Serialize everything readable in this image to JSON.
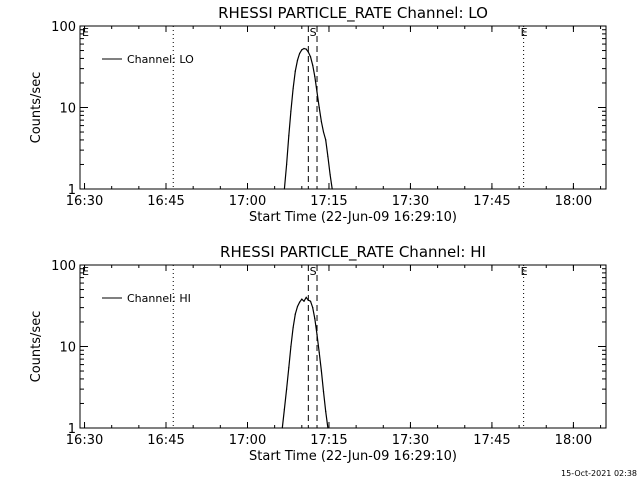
{
  "chart_data": [
    {
      "type": "line",
      "title": "RHESSI PARTICLE_RATE Channel: LO",
      "xlabel": "Start Time (22-Jun-09 16:29:10)",
      "ylabel": "Counts/sec",
      "y_scale": "log",
      "ylim": [
        1,
        100
      ],
      "y_ticks": [
        "1",
        "10",
        "100"
      ],
      "xlim": [
        "16:29:10",
        "18:06:00"
      ],
      "x_ticks": [
        "16:30",
        "16:45",
        "17:00",
        "17:15",
        "17:30",
        "17:45",
        "18:00"
      ],
      "legend": {
        "entry": "Channel: LO",
        "placement": "top-left"
      },
      "grid": false,
      "series": [
        {
          "name": "Channel: LO",
          "x": [
            "17:06:48",
            "17:07:12",
            "17:07:36",
            "17:08:00",
            "17:08:24",
            "17:08:48",
            "17:09:12",
            "17:09:36",
            "17:10:00",
            "17:10:24",
            "17:10:48",
            "17:11:12",
            "17:11:36",
            "17:12:00",
            "17:12:24",
            "17:12:48",
            "17:13:12",
            "17:13:36",
            "17:14:00",
            "17:14:24",
            "17:14:48",
            "17:15:12",
            "17:15:36"
          ],
          "values": [
            1,
            2,
            4.5,
            9,
            17,
            28,
            38,
            46,
            51,
            53,
            52,
            48,
            42,
            33,
            24,
            15.5,
            10,
            6.7,
            5,
            4,
            2.5,
            1.5,
            1
          ]
        }
      ],
      "vertical_markers": [
        {
          "time": "16:46:20",
          "style": "dotted",
          "label": ""
        },
        {
          "time": "17:11:12",
          "style": "dashed",
          "label": ""
        },
        {
          "time": "17:12:48",
          "style": "dashed",
          "label": ""
        },
        {
          "time": "17:50:50",
          "style": "dotted",
          "label": ""
        },
        {
          "time": "18:06:00",
          "style": "dotted",
          "label": ""
        }
      ],
      "flags": [
        {
          "time": "16:29:10",
          "label": "E"
        },
        {
          "time": "17:12:00",
          "label": "S"
        },
        {
          "time": "17:50:50",
          "label": "E"
        }
      ]
    },
    {
      "type": "line",
      "title": "RHESSI PARTICLE_RATE Channel: HI",
      "xlabel": "Start Time (22-Jun-09 16:29:10)",
      "ylabel": "Counts/sec",
      "y_scale": "log",
      "ylim": [
        1,
        100
      ],
      "y_ticks": [
        "1",
        "10",
        "100"
      ],
      "xlim": [
        "16:29:10",
        "18:06:00"
      ],
      "x_ticks": [
        "16:30",
        "16:45",
        "17:00",
        "17:15",
        "17:30",
        "17:45",
        "18:00"
      ],
      "legend": {
        "entry": "Channel: HI",
        "placement": "top-left"
      },
      "grid": false,
      "series": [
        {
          "name": "Channel: HI",
          "x": [
            "17:06:24",
            "17:06:48",
            "17:07:12",
            "17:07:36",
            "17:08:00",
            "17:08:24",
            "17:08:48",
            "17:09:12",
            "17:09:36",
            "17:10:00",
            "17:10:24",
            "17:10:48",
            "17:11:12",
            "17:11:36",
            "17:12:00",
            "17:12:24",
            "17:12:48",
            "17:13:12",
            "17:13:36",
            "17:14:00",
            "17:14:24",
            "17:14:48"
          ],
          "values": [
            1,
            1.7,
            3,
            5.5,
            10,
            17,
            25,
            31,
            35,
            38,
            36,
            40,
            37,
            36,
            30,
            22,
            14,
            8.5,
            5,
            2.8,
            1.6,
            1
          ]
        }
      ],
      "vertical_markers": [
        {
          "time": "16:46:20",
          "style": "dotted",
          "label": ""
        },
        {
          "time": "17:11:12",
          "style": "dashed",
          "label": ""
        },
        {
          "time": "17:12:48",
          "style": "dashed",
          "label": ""
        },
        {
          "time": "17:50:50",
          "style": "dotted",
          "label": ""
        },
        {
          "time": "18:06:00",
          "style": "dotted",
          "label": ""
        }
      ],
      "flags": [
        {
          "time": "16:29:10",
          "label": "E"
        },
        {
          "time": "17:12:00",
          "label": "S"
        },
        {
          "time": "17:50:50",
          "label": "E"
        }
      ]
    }
  ],
  "footer": {
    "timestamp": "15-Oct-2021 02:38"
  }
}
